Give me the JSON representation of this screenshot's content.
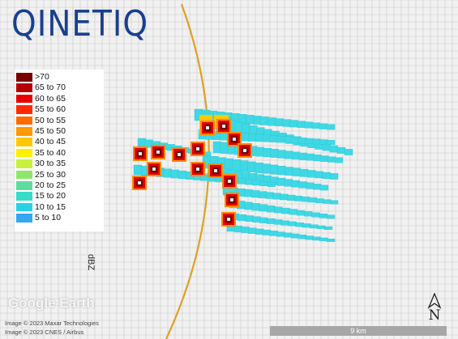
{
  "brand": {
    "logo_text": "QINETIQ"
  },
  "legend": {
    "unit": "dBZ",
    "entries": [
      {
        "label": ">70",
        "color": "#7a0000"
      },
      {
        "label": "65 to 70",
        "color": "#b50000"
      },
      {
        "label": "60 to 65",
        "color": "#e60000"
      },
      {
        "label": "55 to 60",
        "color": "#ff2a00"
      },
      {
        "label": "50 to 55",
        "color": "#ff6a00"
      },
      {
        "label": "45 to 50",
        "color": "#ff9a00"
      },
      {
        "label": "40 to 45",
        "color": "#ffc800"
      },
      {
        "label": "35 to 40",
        "color": "#fff000"
      },
      {
        "label": "30 to 35",
        "color": "#c8f03c"
      },
      {
        "label": "25 to 30",
        "color": "#8ee66a"
      },
      {
        "label": "20 to 25",
        "color": "#5cdca0"
      },
      {
        "label": "15 to 20",
        "color": "#36dcc8"
      },
      {
        "label": "10 to 15",
        "color": "#28d2e6"
      },
      {
        "label": "5 to 10",
        "color": "#32a8f0"
      }
    ]
  },
  "map": {
    "watermark": "Google Earth",
    "credits": [
      "Image © 2023 Maxar Technologies",
      "Image © 2023 CNES / Airbus"
    ],
    "scale_label": "9 km",
    "compass_label": "N",
    "boundary_color": "#e0a020",
    "grid_color": "#c9c9c9"
  }
}
